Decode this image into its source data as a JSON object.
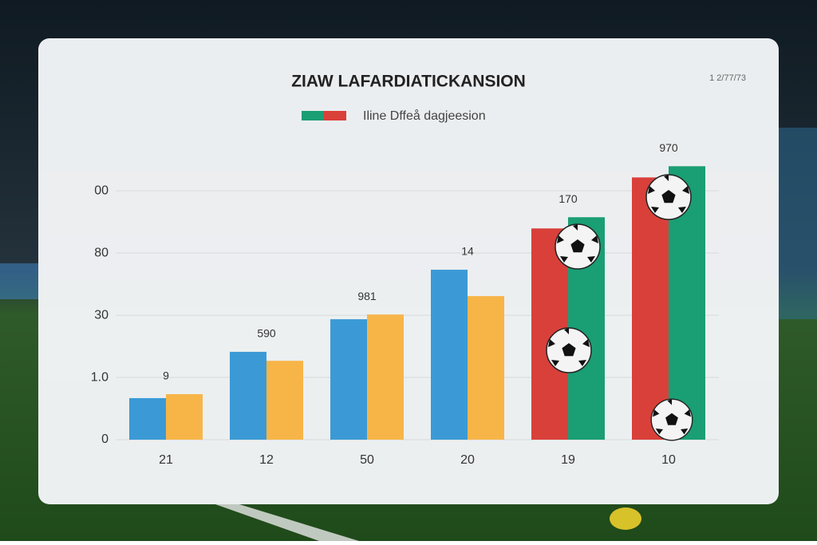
{
  "chart_data": {
    "type": "bar",
    "title": "ZIAW LAFARDIATICKANSION",
    "corner_text": "1 2/77/73",
    "legend": {
      "label": "Iline Dffeå dagjeesion",
      "colors": [
        "#1a9e74",
        "#d9403a"
      ]
    },
    "categories": [
      "21",
      "12",
      "50",
      "20",
      "19",
      "10"
    ],
    "annotations": [
      "9",
      "590",
      "981",
      "14",
      "170",
      "970"
    ],
    "series": [
      {
        "colors": [
          "#3b9ad6",
          "#3b9ad6",
          "#3b9ad6",
          "#3b9ad6",
          "#d9403a",
          "#d9403a"
        ],
        "values": [
          16.7,
          35.3,
          48.4,
          68.3,
          84.9,
          105.4
        ]
      },
      {
        "colors": [
          "#f7b548",
          "#f7b548",
          "#f7b548",
          "#f7b548",
          "#1a9e74",
          "#1a9e74"
        ],
        "values": [
          18.3,
          31.7,
          50.3,
          57.7,
          89.4,
          109.9
        ]
      }
    ],
    "ylim": [
      0,
      110
    ],
    "yticks": [
      0,
      {
        "value": 25,
        "label": "1.0"
      },
      {
        "value": 50,
        "label": "30"
      },
      {
        "value": 75,
        "label": "80"
      },
      {
        "value": 100,
        "label": "00"
      }
    ],
    "grid": true
  }
}
